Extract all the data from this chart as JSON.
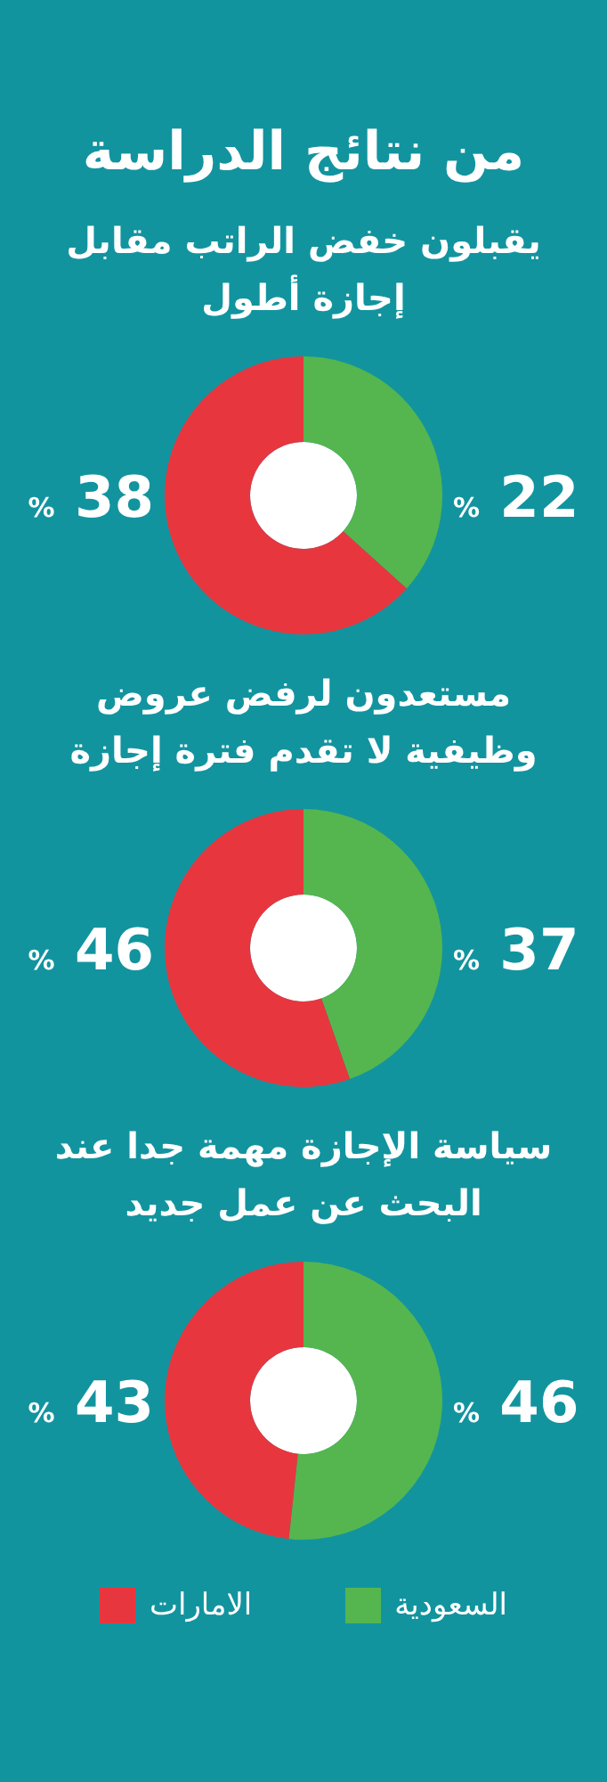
{
  "chart_data": [
    {
      "type": "donut",
      "title": "من نتائج الدراسة",
      "subtitle": "يقبلون خفض الراتب مقابل إجازة أطول",
      "values": [
        22,
        38
      ],
      "colors": [
        "#55b64f",
        "#e8363f"
      ],
      "value_labels": [
        "% 22",
        "% 38"
      ],
      "legend": false
    },
    {
      "type": "donut",
      "subtitle": "مستعدون لرفض عروض وظيفية لا تقدم فترة إجازة",
      "values": [
        37,
        46
      ],
      "colors": [
        "#55b64f",
        "#e8363f"
      ],
      "value_labels": [
        "% 37",
        "% 46"
      ],
      "legend": false
    },
    {
      "type": "donut",
      "subtitle": "سياسة الإجازة مهمة جدا عند البحث عن عمل جديد",
      "categories": [
        "السعودية",
        "الامارات"
      ],
      "values": [
        46,
        43
      ],
      "colors": [
        "#55b64f",
        "#e8363f"
      ],
      "value_labels": [
        "% 46",
        "% 43"
      ],
      "legend": "bottom"
    }
  ]
}
